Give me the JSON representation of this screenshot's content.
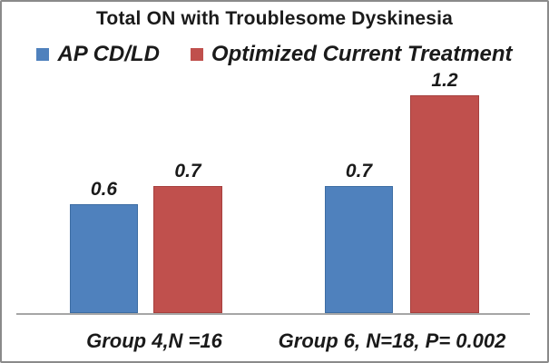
{
  "chart_data": {
    "type": "bar",
    "title": "Total ON with Troublesome Dyskinesia",
    "categories": [
      "Group 4,N =16",
      "Group 6, N=18, P= 0.002"
    ],
    "series": [
      {
        "name": "AP CD/LD",
        "color": "#4F81BD",
        "border_color": "#3D6DA3",
        "values": [
          0.6,
          0.7
        ],
        "data_labels": [
          "0.6",
          "0.7"
        ]
      },
      {
        "name": "Optimized Current Treatment",
        "color": "#C0504D",
        "border_color": "#A6403E",
        "values": [
          0.7,
          1.2
        ],
        "data_labels": [
          "0.7",
          "1.2"
        ]
      }
    ],
    "xlabel": "",
    "ylabel": "",
    "ylim": [
      0,
      1.4
    ],
    "grid": false,
    "legend_position": "top",
    "axis_line_color": "#A6A6A6",
    "text_color": "#1A1A1A",
    "background_color": "#FFFFFF",
    "frame_border_color": "#8A8A8A"
  }
}
